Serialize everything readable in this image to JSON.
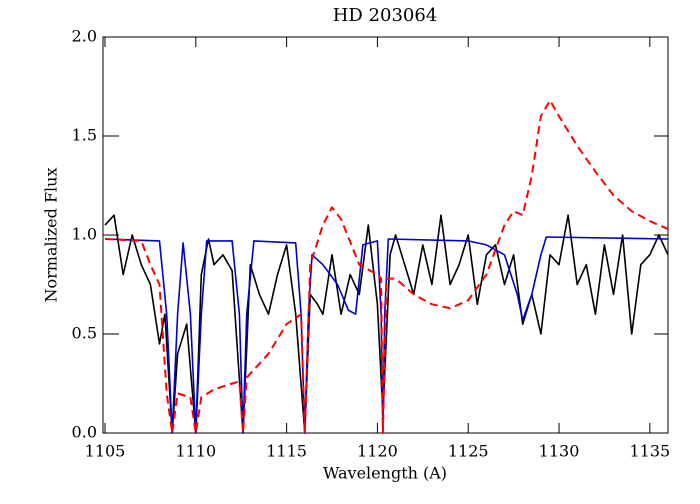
{
  "chart_data": {
    "type": "line",
    "title": "HD 203064",
    "x_label": "Wavelength (A)",
    "y_label": "Normalized Flux",
    "xlim": [
      1105,
      1136
    ],
    "ylim": [
      0,
      2
    ],
    "xticks": [
      1105,
      1110,
      1115,
      1120,
      1125,
      1130,
      1135
    ],
    "yticks": [
      {
        "value": 0,
        "label": "0.0"
      },
      0.5,
      {
        "value": 1,
        "label": "1.0"
      },
      1.5,
      {
        "value": 2,
        "label": "2.0"
      }
    ],
    "series": [
      {
        "color": "#000000",
        "dash": "solid",
        "x": [
          1105,
          1105.5,
          1106,
          1106.5,
          1107,
          1107.5,
          1108,
          1108.3,
          1108.7,
          1109,
          1109.5,
          1110,
          1110.3,
          1110.7,
          1111,
          1111.5,
          1112,
          1112.6,
          1113,
          1113.5,
          1114,
          1114.5,
          1115,
          1115.5,
          1116,
          1116.3,
          1116.7,
          1117,
          1117.5,
          1118,
          1118.5,
          1119,
          1119.5,
          1120,
          1120.3,
          1120.7,
          1121,
          1121.5,
          1122,
          1122.5,
          1123,
          1123.5,
          1124,
          1124.5,
          1125,
          1125.5,
          1126,
          1126.5,
          1127,
          1127.5,
          1128,
          1128.5,
          1129,
          1129.5,
          1130,
          1130.5,
          1131,
          1131.5,
          1132,
          1132.5,
          1133,
          1133.5,
          1134,
          1134.5,
          1135,
          1135.5,
          1136
        ],
        "values": [
          1.05,
          1.1,
          0.8,
          1.0,
          0.85,
          0.75,
          0.45,
          0.6,
          0.0,
          0.4,
          0.55,
          0.0,
          0.8,
          0.98,
          0.85,
          0.9,
          0.82,
          0.0,
          0.85,
          0.7,
          0.6,
          0.8,
          0.95,
          0.6,
          0.0,
          0.7,
          0.65,
          0.6,
          0.9,
          0.6,
          0.8,
          0.7,
          1.05,
          0.65,
          0.1,
          0.9,
          1.0,
          0.85,
          0.7,
          0.95,
          0.75,
          1.1,
          0.75,
          0.85,
          1.0,
          0.65,
          0.9,
          0.95,
          0.75,
          0.9,
          0.55,
          0.7,
          0.5,
          0.9,
          0.85,
          1.1,
          0.75,
          0.85,
          0.6,
          0.95,
          0.7,
          1.0,
          0.5,
          0.85,
          0.9,
          1.0,
          0.9
        ]
      },
      {
        "color": "#0000cc",
        "dash": "solid",
        "x": [
          1105,
          1108,
          1108.4,
          1108.7,
          1109,
          1109.3,
          1109.7,
          1110,
          1110.3,
          1110.6,
          1112,
          1112.4,
          1112.6,
          1112.8,
          1113.2,
          1115.5,
          1115.8,
          1116,
          1116.2,
          1116.4,
          1117,
          1117.8,
          1118.4,
          1118.8,
          1119.2,
          1120,
          1120.2,
          1120.3,
          1120.4,
          1120.6,
          1125,
          1126,
          1127,
          1127.7,
          1128,
          1128.5,
          1129,
          1129.3,
          1136
        ],
        "values": [
          0.98,
          0.97,
          0.6,
          0.0,
          0.6,
          0.96,
          0.6,
          0.0,
          0.6,
          0.97,
          0.97,
          0.6,
          0.0,
          0.6,
          0.97,
          0.96,
          0.6,
          0.0,
          0.6,
          0.9,
          0.85,
          0.75,
          0.62,
          0.6,
          0.95,
          0.97,
          0.6,
          0.0,
          0.6,
          0.98,
          0.97,
          0.95,
          0.9,
          0.7,
          0.57,
          0.7,
          0.9,
          0.99,
          0.98
        ]
      },
      {
        "color": "#ff0000",
        "dash": "dashed",
        "x": [
          1105,
          1107,
          1107.5,
          1108,
          1108.4,
          1108.7,
          1109,
          1109.7,
          1110,
          1110.3,
          1111,
          1112,
          1112.4,
          1112.6,
          1112.8,
          1113,
          1114,
          1115,
          1115.8,
          1116,
          1116.3,
          1117,
          1117.5,
          1118,
          1119,
          1120,
          1120.2,
          1120.3,
          1120.5,
          1121,
          1122,
          1123,
          1124,
          1125,
          1126,
          1127,
          1127.5,
          1128,
          1128.5,
          1129,
          1129.5,
          1130,
          1131,
          1132,
          1133,
          1134,
          1135,
          1136
        ],
        "values": [
          0.98,
          0.97,
          0.85,
          0.75,
          0.2,
          0.0,
          0.2,
          0.18,
          0.0,
          0.18,
          0.22,
          0.25,
          0.26,
          0.0,
          0.28,
          0.3,
          0.4,
          0.55,
          0.6,
          0.0,
          0.85,
          1.05,
          1.14,
          1.08,
          0.85,
          0.8,
          0.78,
          0.0,
          0.78,
          0.78,
          0.7,
          0.65,
          0.63,
          0.67,
          0.8,
          1.05,
          1.12,
          1.1,
          1.3,
          1.6,
          1.68,
          1.6,
          1.45,
          1.32,
          1.2,
          1.12,
          1.07,
          1.03
        ]
      }
    ]
  }
}
